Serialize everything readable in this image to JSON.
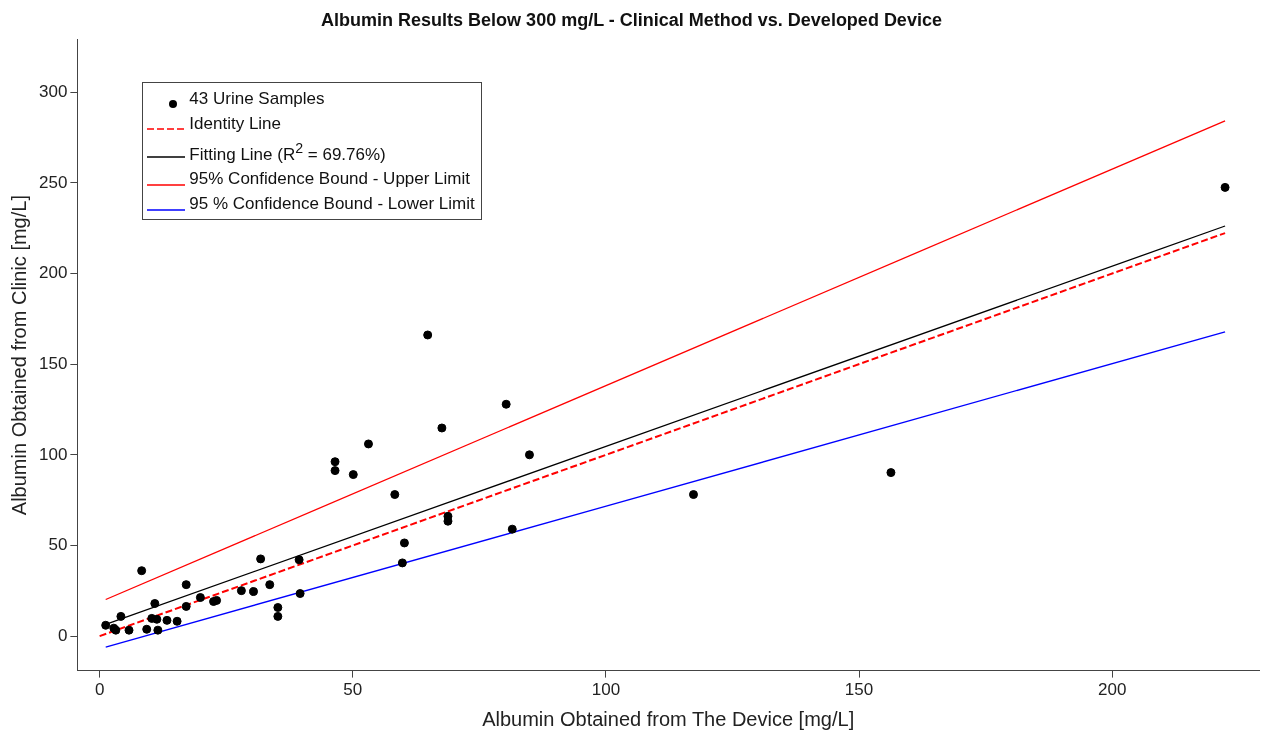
{
  "chart_data": {
    "type": "scatter",
    "title": "Albumin Results Below 300 mg/L - Clinical Method vs. Developed Device",
    "xlabel": "Albumin Obtained from The Device [mg/L]",
    "ylabel": "Albumin Obtained from Clinic [mg/L]",
    "xlim": [
      -4.4,
      229
    ],
    "xticks": [
      0,
      50,
      100,
      150,
      200
    ],
    "ylim": [
      -19,
      329
    ],
    "yticks": [
      0,
      50,
      100,
      150,
      200,
      250,
      300
    ],
    "grid": false,
    "legend": "top left",
    "series": [
      {
        "name": "43 Urine Samples",
        "type": "scatter",
        "marker": "circle",
        "color": "#000000",
        "x": [
          1.2,
          2.8,
          3.2,
          4.2,
          5.8,
          8.3,
          9.3,
          10.3,
          10.9,
          11.3,
          11.5,
          13.3,
          15.3,
          17.1,
          17.1,
          19.9,
          22.5,
          23.1,
          28.0,
          30.4,
          31.8,
          33.6,
          35.2,
          35.2,
          39.4,
          39.6,
          46.5,
          46.5,
          50.1,
          53.1,
          58.3,
          59.8,
          60.2,
          64.8,
          67.6,
          68.8,
          68.8,
          80.3,
          81.5,
          84.9,
          117.3,
          156.3,
          222.3
        ],
        "values": [
          6.0,
          4.4,
          3.3,
          10.9,
          3.3,
          36.1,
          3.8,
          9.8,
          18.0,
          9.3,
          3.3,
          8.7,
          8.2,
          28.4,
          16.4,
          21.3,
          19.1,
          19.7,
          25.1,
          24.6,
          42.6,
          28.4,
          15.8,
          10.9,
          42.1,
          23.5,
          96.2,
          91.3,
          89.1,
          106.0,
          78.1,
          40.4,
          51.4,
          166.1,
          114.8,
          66.1,
          63.4,
          127.9,
          59.0,
          100.0,
          78.1,
          90.2,
          247.5
        ]
      },
      {
        "name": "Identity Line",
        "type": "line",
        "line_style": "dashed",
        "marker": "none",
        "color": "#ff0000",
        "x": [
          0,
          222.3
        ],
        "values": [
          0,
          222.3
        ]
      },
      {
        "name": "Fitting Line (R$^{2}$ = 69.76%)",
        "type": "line",
        "line_style": "solid",
        "marker": "none",
        "color": "#000000",
        "x": [
          1.2,
          222.3
        ],
        "values": [
          6.5,
          226.2
        ]
      },
      {
        "name": "95% Confidence Bound - Upper Limit",
        "type": "line",
        "line_style": "solid",
        "marker": "none",
        "color": "#ff0000",
        "x": [
          1.2,
          222.3
        ],
        "values": [
          20.2,
          284.2
        ]
      },
      {
        "name": "95 % Confidence Bound - Lower Limit",
        "type": "line",
        "line_style": "solid",
        "marker": "none",
        "color": "#0000ff",
        "x": [
          1.2,
          222.3
        ],
        "values": [
          -6.0,
          167.8
        ]
      }
    ]
  }
}
